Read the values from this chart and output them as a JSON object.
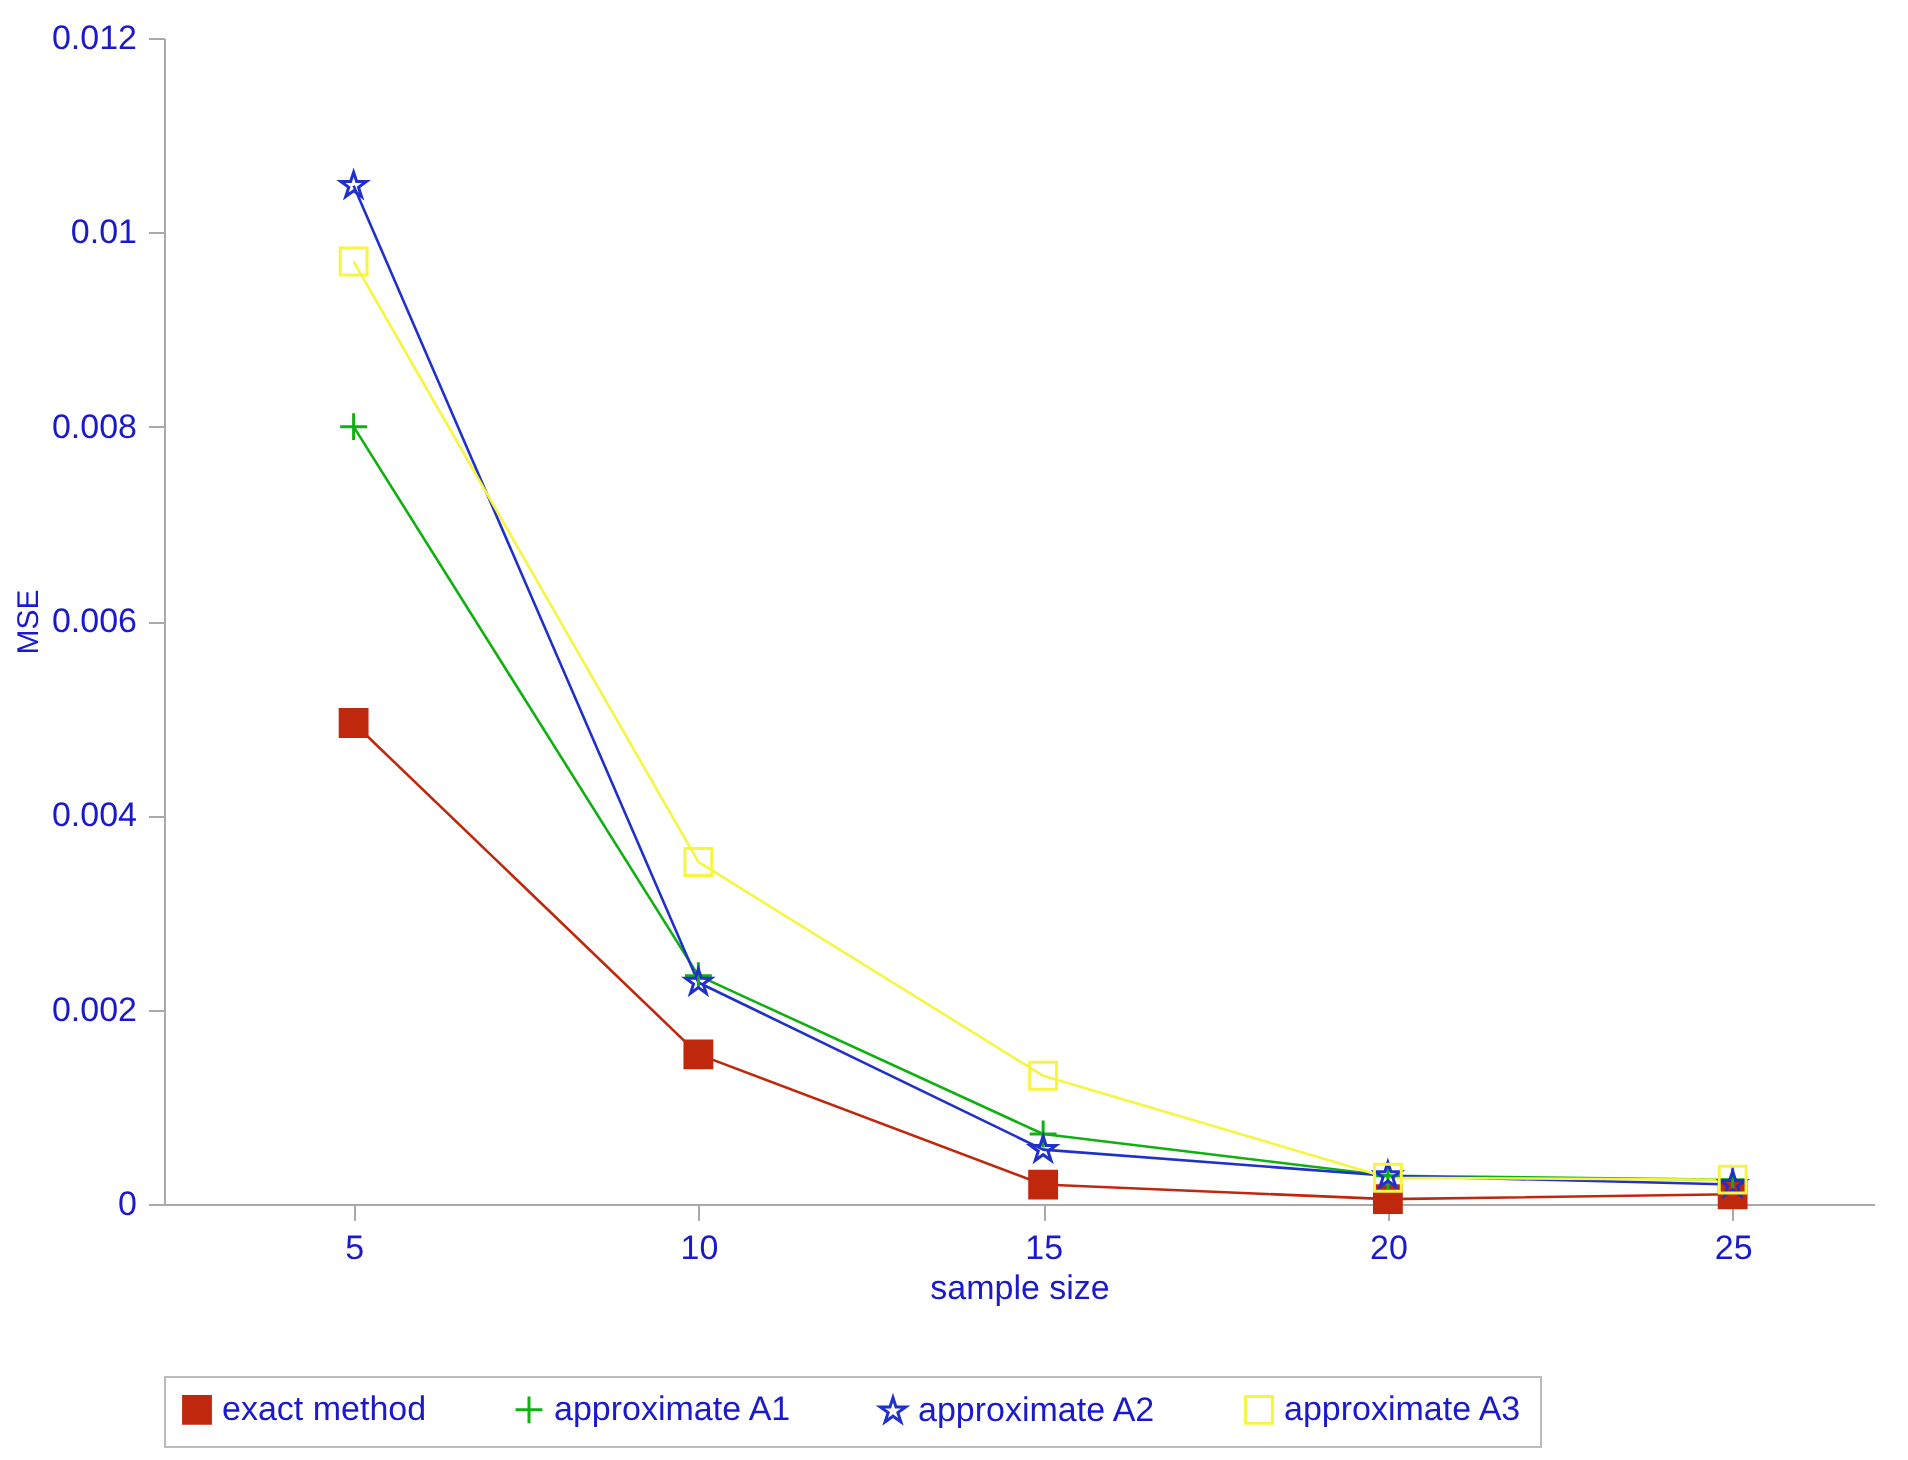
{
  "chart_data": {
    "type": "line",
    "xlabel": "sample size",
    "ylabel": "MSE",
    "x": [
      5,
      10,
      15,
      20,
      25
    ],
    "xlim": [
      2.25,
      27.05
    ],
    "xticks": [
      5,
      10,
      15,
      20,
      25
    ],
    "ylim": [
      0,
      0.012
    ],
    "yticks": [
      0,
      0.002,
      0.004,
      0.006,
      0.008,
      0.01,
      0.012
    ],
    "legend": "bottom",
    "grid": false,
    "series": [
      {
        "name": "exact method",
        "color": "#c0280e",
        "marker": "square",
        "values": [
          0.00495,
          0.00154,
          0.0002,
          5e-05,
          0.0001
        ]
      },
      {
        "name": "approximate A1",
        "color": "#10b010",
        "marker": "cross",
        "values": [
          0.008,
          0.00235,
          0.00072,
          0.00029,
          0.00025
        ]
      },
      {
        "name": "approximate A2",
        "color": "#2030cc",
        "marker": "star",
        "values": [
          0.01048,
          0.00228,
          0.00056,
          0.00029,
          0.0002
        ]
      },
      {
        "name": "approximate A3",
        "color": "#f5f542",
        "marker": "square-open",
        "values": [
          0.0097,
          0.00352,
          0.00132,
          0.00027,
          0.00025
        ]
      }
    ]
  }
}
